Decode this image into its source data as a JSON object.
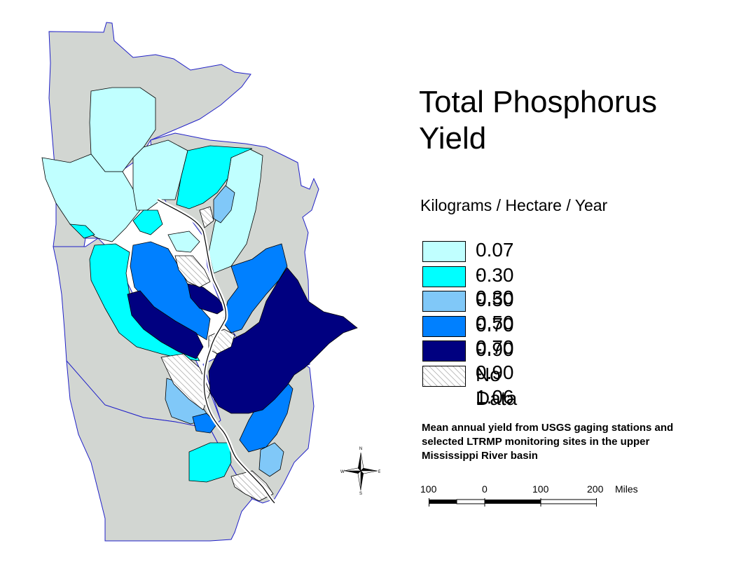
{
  "title_line1": "Total Phosphorus",
  "title_line2": "Yield",
  "units": "Kilograms / Hectare / Year",
  "legend": [
    {
      "label": "0.07 - 0.30",
      "color": "#c0ffff"
    },
    {
      "label": "0.30 - 0.50",
      "color": "#00ffff"
    },
    {
      "label": "0.50 - 0.70",
      "color": "#80c8f8"
    },
    {
      "label": "0.70 - 0.90",
      "color": "#0080ff"
    },
    {
      "label": "0.90 - 1.06",
      "color": "#000080"
    },
    {
      "label": "No Data",
      "color": "hatched"
    }
  ],
  "note": "Mean annual yield from USGS gaging stations and selected LTRMP monitoring sites in the upper Mississippi River basin",
  "scale_bar": {
    "labels": [
      "100",
      "0",
      "100",
      "200"
    ],
    "unit": "Miles"
  },
  "compass": {
    "n": "N",
    "s": "S",
    "e": "E",
    "w": "W"
  },
  "colors": {
    "state_fill": "#d2d6d2",
    "state_border": "#2020c8",
    "basin_border": "#000000"
  }
}
